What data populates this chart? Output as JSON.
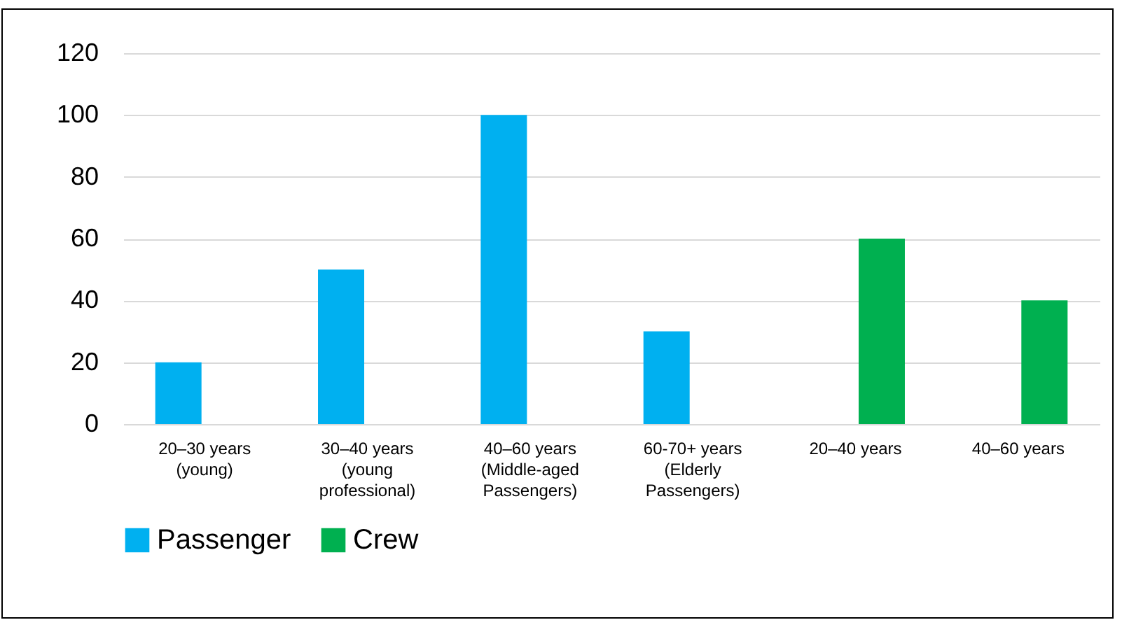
{
  "chart_data": {
    "type": "bar",
    "categories": [
      "20–30 years\n(young)",
      "30–40 years\n(young\nprofessional)",
      "40–60 years\n(Middle-aged\nPassengers)",
      "60-70+ years\n(Elderly\nPassengers)",
      "20–40 years",
      "40–60 years"
    ],
    "series": [
      {
        "name": "Passenger",
        "color": "#00b0f0",
        "values": [
          20,
          50,
          100,
          30,
          null,
          null
        ]
      },
      {
        "name": "Crew",
        "color": "#00b050",
        "values": [
          null,
          null,
          null,
          null,
          60,
          40
        ]
      }
    ],
    "ylim": [
      0,
      120
    ],
    "yticks": [
      0,
      20,
      40,
      60,
      80,
      100,
      120
    ],
    "grid": "y",
    "legend": "bottom"
  }
}
